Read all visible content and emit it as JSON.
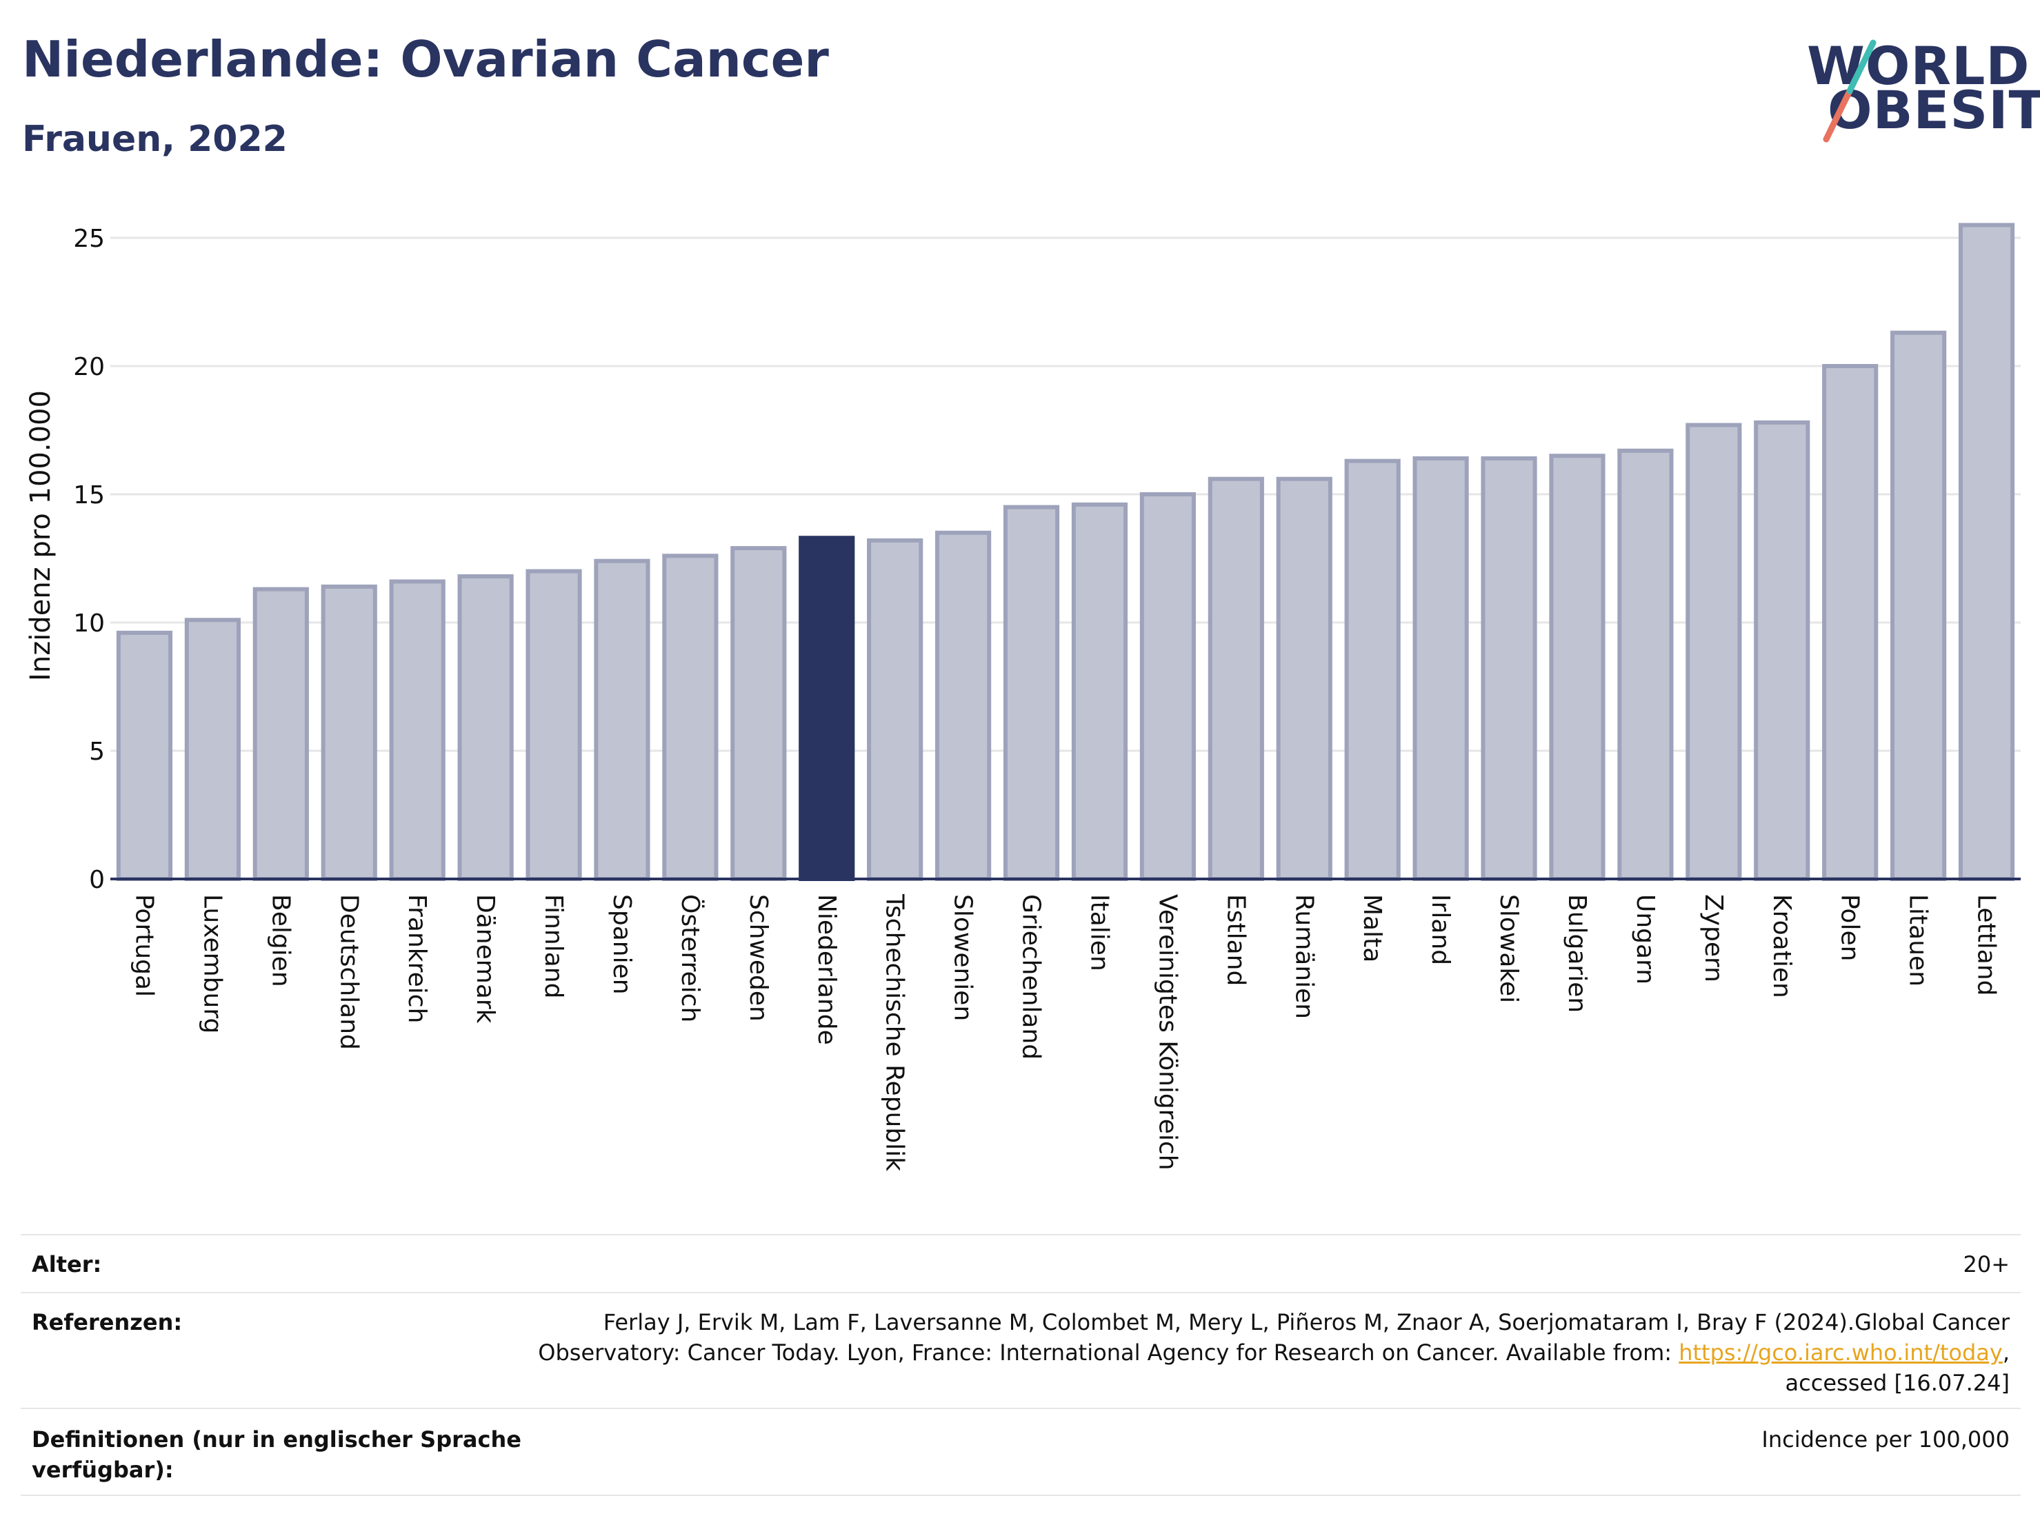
{
  "header": {
    "title": "Niederlande: Ovarian Cancer",
    "subtitle": "Frauen, 2022",
    "logo_line1": "WORLD",
    "logo_line2": "OBESITY"
  },
  "chart_data": {
    "type": "bar",
    "title": "Niederlande: Ovarian Cancer",
    "subtitle": "Frauen, 2022",
    "ylabel": "Inzidenz pro 100.000",
    "xlabel": "",
    "ylim": [
      0,
      26
    ],
    "yticks": [
      0,
      5,
      10,
      15,
      20,
      25
    ],
    "grid": true,
    "highlight": "Niederlande",
    "categories": [
      "Portugal",
      "Luxemburg",
      "Belgien",
      "Deutschland",
      "Frankreich",
      "Dänemark",
      "Finnland",
      "Spanien",
      "Österreich",
      "Schweden",
      "Niederlande",
      "Tschechische Republik",
      "Slowenien",
      "Griechenland",
      "Italien",
      "Vereinigtes Königreich",
      "Estland",
      "Rumänien",
      "Malta",
      "Irland",
      "Slowakei",
      "Bulgarien",
      "Ungarn",
      "Zypern",
      "Kroatien",
      "Polen",
      "Litauen",
      "Lettland"
    ],
    "values": [
      9.6,
      10.1,
      11.3,
      11.4,
      11.6,
      11.8,
      12.0,
      12.4,
      12.6,
      12.9,
      13.3,
      13.2,
      13.5,
      14.5,
      14.6,
      15.0,
      15.6,
      15.6,
      16.3,
      16.4,
      16.4,
      16.5,
      16.7,
      17.7,
      17.8,
      20.0,
      21.3,
      25.5
    ]
  },
  "colors": {
    "bar": "#c0c3d1",
    "bar_border": "#9ea3bb",
    "highlight": "#2a3461",
    "axis_text": "#111111",
    "grid": "#e6e6e6",
    "logo_teal": "#3fbcb3",
    "logo_coral": "#e8735f",
    "link": "#e7a51f"
  },
  "meta": {
    "age_label": "Alter:",
    "age_value": "20+",
    "ref_label": "Referenzen:",
    "ref_line1": "Ferlay J, Ervik M, Lam F, Laversanne M, Colombet M, Mery L, Piñeros M, Znaor A, Soerjomataram I, Bray F (2024).Global Cancer",
    "ref_line2_pre": "Observatory: Cancer Today. Lyon, France: International Agency for Research on Cancer. Available from: ",
    "ref_link": "https://gco.iarc.who.int/today",
    "ref_line2_post": ",",
    "ref_line3": "accessed [16.07.24]",
    "def_label_line1": "Definitionen (nur in englischer Sprache",
    "def_label_line2": "verfügbar):",
    "def_value": "Incidence per 100,000"
  }
}
